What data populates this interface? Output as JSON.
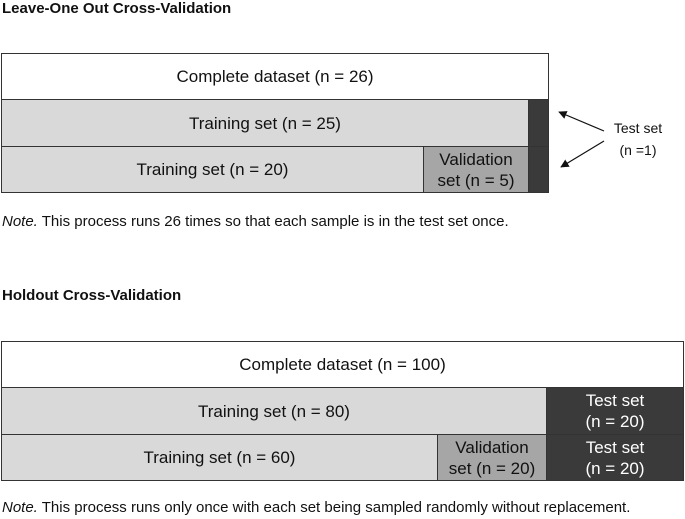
{
  "loo": {
    "title": "Leave-One Out Cross-Validation",
    "complete": "Complete dataset (n = 26)",
    "training_full": "Training set (n = 25)",
    "training_partial": "Training set (n = 20)",
    "validation_line1": "Validation",
    "validation_line2": "set (n = 5)",
    "test_label_line1": "Test set",
    "test_label_line2": "(n =1)",
    "note_prefix": "Note.",
    "note_text": " This process runs 26 times so that each sample is in the test set once."
  },
  "holdout": {
    "title": "Holdout Cross-Validation",
    "complete": "Complete dataset (n = 100)",
    "training_full": "Training set (n = 80)",
    "training_partial": "Training set (n = 60)",
    "validation_line1": "Validation",
    "validation_line2": "set (n = 20)",
    "test_line1": "Test set",
    "test_line2": "(n = 20)",
    "test2_line1": "Test set",
    "test2_line2": "(n = 20)",
    "note_prefix": "Note.",
    "note_text": " This process runs only once with each set being sampled randomly without replacement."
  },
  "colors": {
    "complete": "#ffffff",
    "training": "#d9d9d9",
    "validation": "#a6a6a6",
    "test": "#3a3a3a"
  }
}
